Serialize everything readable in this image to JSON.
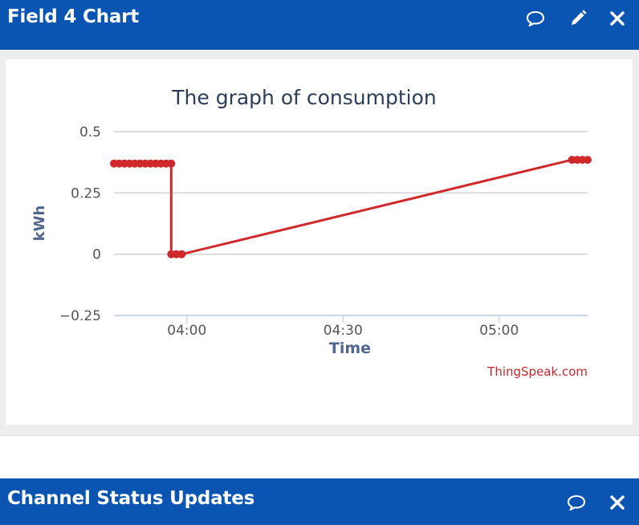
{
  "field_panel": {
    "title": "Field 4 Chart",
    "icons": [
      "comment-icon",
      "pencil-icon",
      "close-icon"
    ]
  },
  "status_panel": {
    "title": "Channel Status Updates",
    "icons": [
      "comment-icon",
      "close-icon"
    ]
  },
  "chart_data": {
    "type": "line",
    "title": "The graph of consumption",
    "xlabel": "Time",
    "ylabel": "kWh",
    "credit": "ThingSpeak.com",
    "x_ticks": [
      "04:00",
      "04:30",
      "05:00"
    ],
    "y_ticks": [
      "0.5",
      "0.25",
      "0",
      "−0.25"
    ],
    "ylim": [
      -0.25,
      0.5
    ],
    "xlim": [
      "03:46",
      "05:17"
    ],
    "grid": true,
    "series_color": "#d0292c",
    "series": [
      {
        "x": [
          "03:46",
          "03:47",
          "03:48",
          "03:49",
          "03:50",
          "03:51",
          "03:52",
          "03:53",
          "03:54",
          "03:55",
          "03:56",
          "03:57",
          "03:57",
          "03:58",
          "03:59",
          "05:14",
          "05:15",
          "05:16",
          "05:17"
        ],
        "values": [
          0.37,
          0.37,
          0.37,
          0.37,
          0.37,
          0.37,
          0.37,
          0.37,
          0.37,
          0.37,
          0.37,
          0.37,
          0,
          0,
          0,
          0.385,
          0.385,
          0.385,
          0.385
        ]
      }
    ]
  }
}
